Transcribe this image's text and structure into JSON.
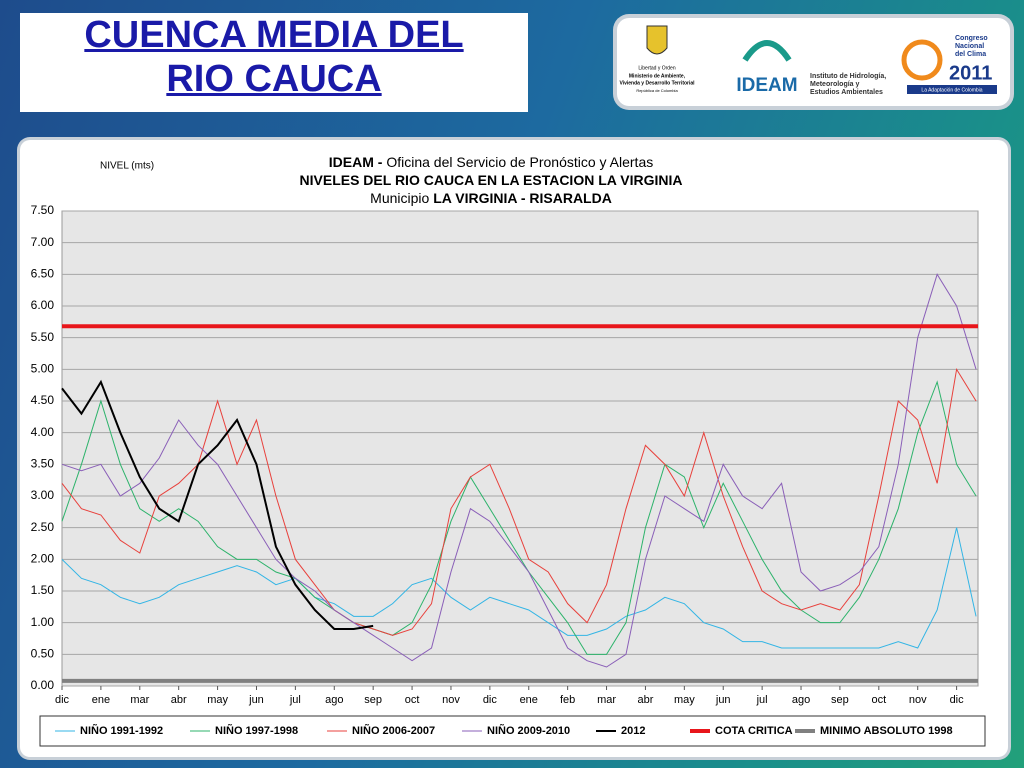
{
  "slide_title": [
    "CUENCA  MEDIA DEL",
    "RIO  CAUCA"
  ],
  "logos": {
    "ministerio": [
      "Libertad y Orden",
      "Ministerio de Ambiente,",
      "Vivienda y Desarrollo Territorial",
      "República de Colombia"
    ],
    "ideam": "IDEAM",
    "ideam_full": [
      "Instituto de Hidrología,",
      "Meteorología y",
      "Estudios Ambientales"
    ],
    "congreso": [
      "Congreso",
      "Nacional",
      "del Clima",
      "2011",
      "La Adaptación de Colombia"
    ]
  },
  "chart_data": {
    "type": "line",
    "y_label": "NIVEL (mts)",
    "title_lines": [
      [
        {
          "text": "IDEAM - ",
          "bold": true
        },
        {
          "text": "Oficina del Servicio de Pronóstico y Alertas",
          "bold": false
        }
      ],
      [
        {
          "text": "NIVELES DEL RIO CAUCA EN LA ESTACION LA VIRGINIA",
          "bold": true
        }
      ],
      [
        {
          "text": "Municipio ",
          "bold": false
        },
        {
          "text": "LA VIRGINIA - RISARALDA",
          "bold": true
        }
      ]
    ],
    "x": [
      0,
      0.5,
      1,
      1.5,
      2,
      2.5,
      3,
      3.5,
      4,
      4.5,
      5,
      5.5,
      6,
      6.5,
      7,
      7.5,
      8,
      8.5,
      9,
      9.5,
      10,
      10.5,
      11,
      11.5,
      12,
      12.5,
      13,
      13.5,
      14,
      14.5,
      15,
      15.5,
      16,
      16.5,
      17,
      17.5,
      18,
      18.5,
      19,
      19.5,
      20,
      20.5,
      21,
      21.5,
      22,
      22.5,
      23,
      23.5
    ],
    "xlim": [
      0,
      23.55
    ],
    "xticks": [
      {
        "value": 0,
        "label": "dic"
      },
      {
        "value": 1,
        "label": "ene"
      },
      {
        "value": 2,
        "label": "mar"
      },
      {
        "value": 3,
        "label": "abr"
      },
      {
        "value": 4,
        "label": "may"
      },
      {
        "value": 5,
        "label": "jun"
      },
      {
        "value": 6,
        "label": "jul"
      },
      {
        "value": 7,
        "label": "ago"
      },
      {
        "value": 8,
        "label": "sep"
      },
      {
        "value": 9,
        "label": "oct"
      },
      {
        "value": 10,
        "label": "nov"
      },
      {
        "value": 11,
        "label": "dic"
      },
      {
        "value": 12,
        "label": "ene"
      },
      {
        "value": 13,
        "label": "feb"
      },
      {
        "value": 14,
        "label": "mar"
      },
      {
        "value": 15,
        "label": "abr"
      },
      {
        "value": 16,
        "label": "may"
      },
      {
        "value": 17,
        "label": "jun"
      },
      {
        "value": 18,
        "label": "jul"
      },
      {
        "value": 19,
        "label": "ago"
      },
      {
        "value": 20,
        "label": "sep"
      },
      {
        "value": 21,
        "label": "oct"
      },
      {
        "value": 22,
        "label": "nov"
      },
      {
        "value": 23,
        "label": "dic"
      }
    ],
    "ylim": [
      0,
      7.5
    ],
    "yticks": [
      {
        "value": 0,
        "label": "0.00"
      },
      {
        "value": 0.5,
        "label": "0.50"
      },
      {
        "value": 1,
        "label": "1.00"
      },
      {
        "value": 1.5,
        "label": "1.50"
      },
      {
        "value": 2,
        "label": "2.00"
      },
      {
        "value": 2.5,
        "label": "2.50"
      },
      {
        "value": 3,
        "label": "3.00"
      },
      {
        "value": 3.5,
        "label": "3.50"
      },
      {
        "value": 4,
        "label": "4.00"
      },
      {
        "value": 4.5,
        "label": "4.50"
      },
      {
        "value": 5,
        "label": "5.00"
      },
      {
        "value": 5.5,
        "label": "5.50"
      },
      {
        "value": 6,
        "label": "6.00"
      },
      {
        "value": 6.5,
        "label": "6.50"
      },
      {
        "value": 7,
        "label": "7.00"
      },
      {
        "value": 7.5,
        "label": "7.50"
      }
    ],
    "grid": true,
    "series": [
      {
        "name": "NIÑO 1991-1992",
        "color": "#33b5e5",
        "values": [
          2.0,
          1.7,
          1.6,
          1.4,
          1.3,
          1.4,
          1.6,
          1.7,
          1.8,
          1.9,
          1.8,
          1.6,
          1.7,
          1.4,
          1.3,
          1.1,
          1.1,
          1.3,
          1.6,
          1.7,
          1.4,
          1.2,
          1.4,
          1.3,
          1.2,
          1.0,
          0.8,
          0.8,
          0.9,
          1.1,
          1.2,
          1.4,
          1.3,
          1.0,
          0.9,
          0.7,
          0.7,
          0.6,
          0.6,
          0.6,
          0.6,
          0.6,
          0.6,
          0.7,
          0.6,
          1.2,
          2.5,
          1.1
        ]
      },
      {
        "name": "NIÑO 1997-1998",
        "color": "#2db36b",
        "values": [
          2.6,
          3.5,
          4.5,
          3.5,
          2.8,
          2.6,
          2.8,
          2.6,
          2.2,
          2.0,
          2.0,
          1.8,
          1.7,
          1.4,
          1.2,
          1.0,
          0.9,
          0.8,
          1.0,
          1.6,
          2.6,
          3.3,
          2.8,
          2.3,
          1.8,
          1.4,
          1.0,
          0.5,
          0.5,
          1.0,
          2.5,
          3.5,
          3.3,
          2.5,
          3.2,
          2.6,
          2.0,
          1.5,
          1.2,
          1.0,
          1.0,
          1.4,
          2.0,
          2.8,
          4.0,
          4.8,
          3.5,
          3.0
        ]
      },
      {
        "name": "NIÑO 2006-2007",
        "color": "#e8413c",
        "values": [
          3.2,
          2.8,
          2.7,
          2.3,
          2.1,
          3.0,
          3.2,
          3.5,
          4.5,
          3.5,
          4.2,
          3.0,
          2.0,
          1.6,
          1.2,
          1.0,
          0.9,
          0.8,
          0.9,
          1.3,
          2.8,
          3.3,
          3.5,
          2.8,
          2.0,
          1.8,
          1.3,
          1.0,
          1.6,
          2.8,
          3.8,
          3.5,
          3.0,
          4.0,
          3.0,
          2.2,
          1.5,
          1.3,
          1.2,
          1.3,
          1.2,
          1.6,
          3.0,
          4.5,
          4.2,
          3.2,
          5.0,
          4.5
        ]
      },
      {
        "name": "NIÑO 2009-2010",
        "color": "#8a5fb8",
        "values": [
          3.5,
          3.4,
          3.5,
          3.0,
          3.2,
          3.6,
          4.2,
          3.8,
          3.5,
          3.0,
          2.5,
          2.0,
          1.7,
          1.5,
          1.2,
          1.0,
          0.8,
          0.6,
          0.4,
          0.6,
          1.8,
          2.8,
          2.6,
          2.2,
          1.8,
          1.2,
          0.6,
          0.4,
          0.3,
          0.5,
          2.0,
          3.0,
          2.8,
          2.6,
          3.5,
          3.0,
          2.8,
          3.2,
          1.8,
          1.5,
          1.6,
          1.8,
          2.2,
          3.5,
          5.5,
          6.5,
          6.0,
          5.0
        ]
      },
      {
        "name": "2012",
        "color": "#000000",
        "width": 2,
        "values": [
          4.7,
          4.3,
          4.8,
          4.0,
          3.3,
          2.8,
          2.6,
          3.5,
          3.8,
          4.2,
          3.5,
          2.2,
          1.6,
          1.2,
          0.9,
          0.9,
          0.95,
          null,
          null,
          null,
          null,
          null,
          null,
          null,
          null,
          null,
          null,
          null,
          null,
          null,
          null,
          null,
          null,
          null,
          null,
          null,
          null,
          null,
          null,
          null,
          null,
          null,
          null,
          null,
          null,
          null,
          null,
          null
        ]
      },
      {
        "name": "COTA CRITICA",
        "color": "#e8161b",
        "width": 4,
        "value": 5.68
      },
      {
        "name": "MINIMO ABSOLUTO 1998",
        "color": "#808080",
        "width": 4,
        "value": 0.08
      }
    ]
  }
}
